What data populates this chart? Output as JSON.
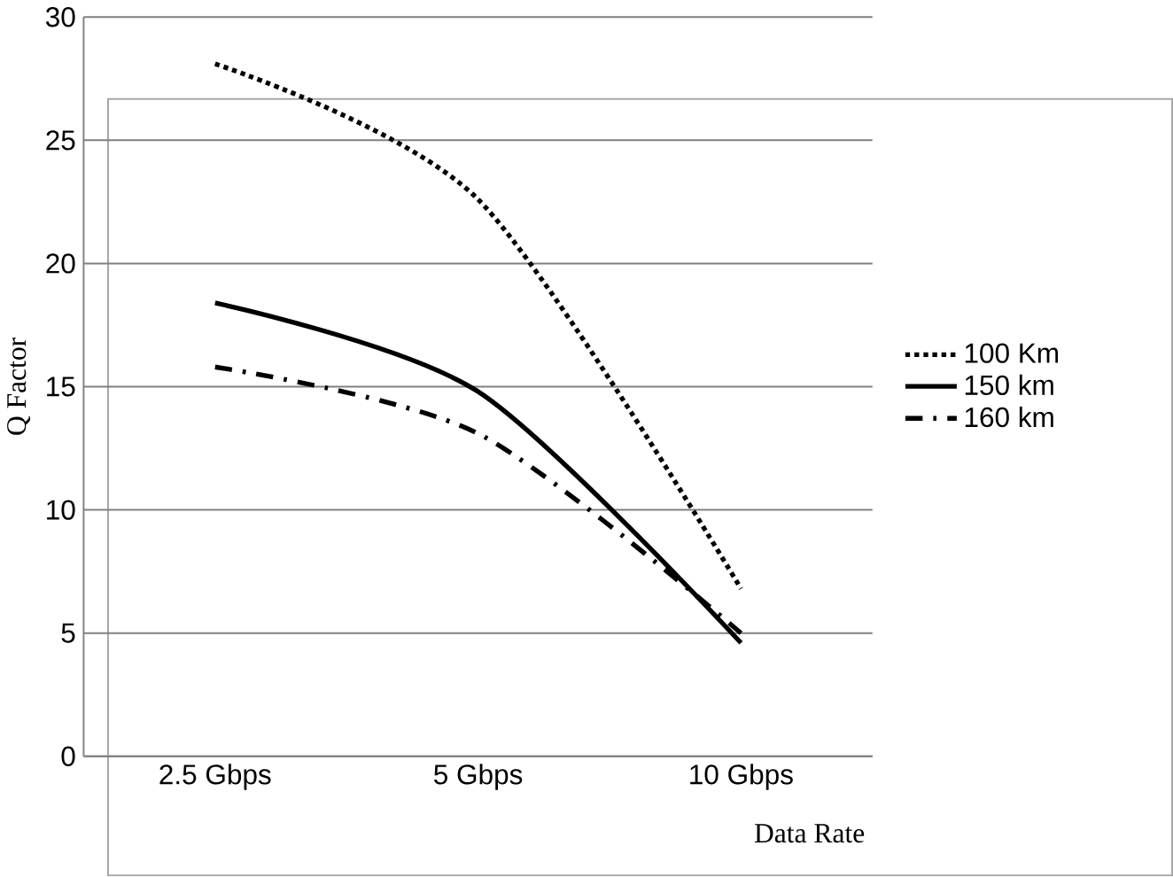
{
  "chart_data": {
    "type": "line",
    "xlabel": "Data Rate",
    "ylabel": "Q Factor",
    "categories": [
      "2.5 Gbps",
      "5 Gbps",
      "10 Gbps"
    ],
    "series": [
      {
        "name": "100 Km",
        "color": "#000000",
        "line_style": "dotted",
        "values": [
          28.1,
          22.6,
          6.8
        ]
      },
      {
        "name": "150 km",
        "color": "#000000",
        "line_style": "solid",
        "values": [
          18.4,
          14.8,
          4.6
        ]
      },
      {
        "name": "160 km",
        "color": "#000000",
        "line_style": "dashdot",
        "values": [
          15.8,
          13.1,
          5.0
        ]
      }
    ],
    "ylim": [
      0,
      30
    ],
    "yticks": [
      0,
      5,
      10,
      15,
      20,
      25,
      30
    ],
    "grid": "y",
    "legend": "right",
    "marker": "none"
  }
}
